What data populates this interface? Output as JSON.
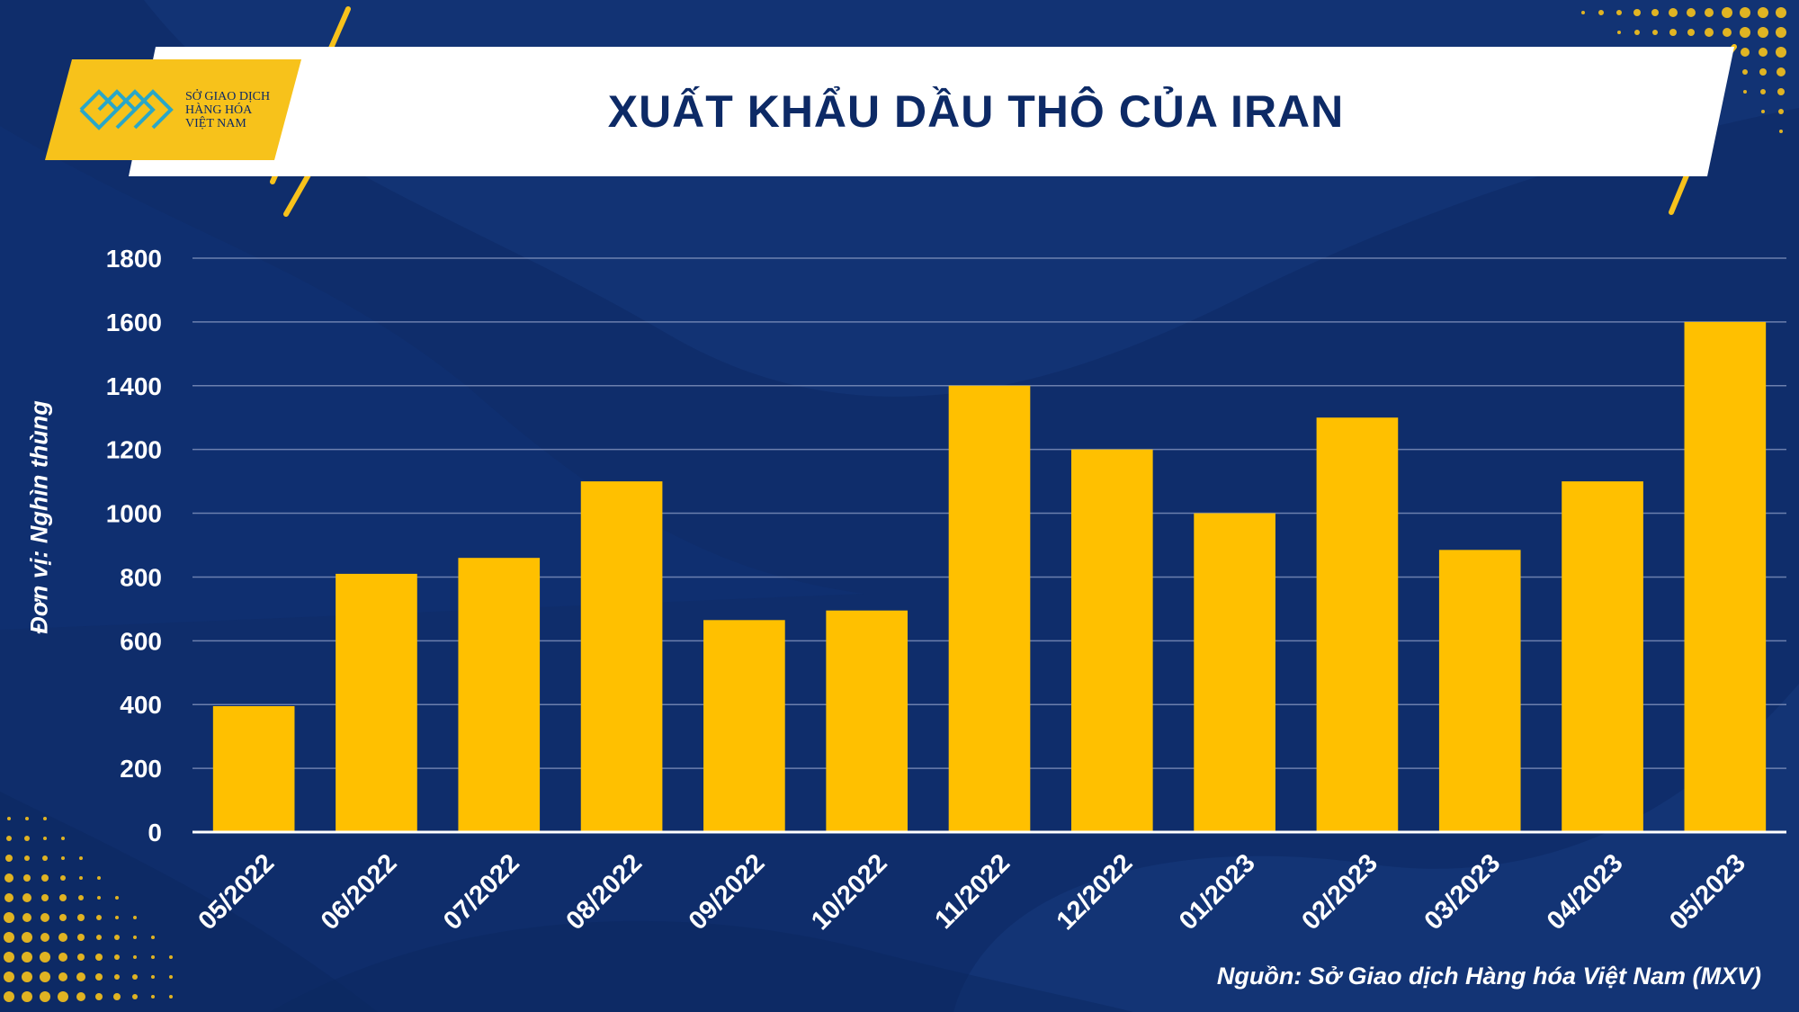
{
  "logo": {
    "line1": "SỞ GIAO DỊCH",
    "line2": "HÀNG HÓA",
    "line3": "VIỆT NAM"
  },
  "colors": {
    "background": "#0f2d6b",
    "bar": "#ffc000",
    "accent": "#f7c21b",
    "title_text": "#0d2a66"
  },
  "source": "Nguồn: Sở Giao dịch Hàng hóa Việt Nam (MXV)",
  "chart_data": {
    "type": "bar",
    "title": "XUẤT KHẨU DẦU THÔ CỦA IRAN",
    "ylabel": "Đơn vị: Nghìn thùng",
    "xlabel": "",
    "ylim": [
      0,
      1800
    ],
    "yticks": [
      0,
      200,
      400,
      600,
      800,
      1000,
      1200,
      1400,
      1600,
      1800
    ],
    "grid": true,
    "categories": [
      "05/2022",
      "06/2022",
      "07/2022",
      "08/2022",
      "09/2022",
      "10/2022",
      "11/2022",
      "12/2022",
      "01/2023",
      "02/2023",
      "03/2023",
      "04/2023",
      "05/2023"
    ],
    "values": [
      395,
      810,
      860,
      1100,
      665,
      695,
      1400,
      1200,
      1000,
      1300,
      885,
      1100,
      1600
    ]
  }
}
